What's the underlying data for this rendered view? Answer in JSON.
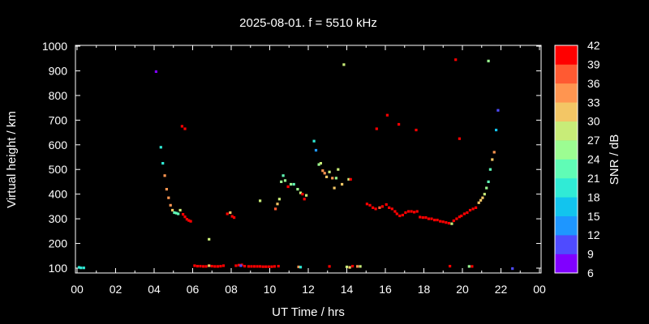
{
  "chart_data": {
    "type": "scatter",
    "title": "2025-08-01. f = 5510 kHz",
    "xlabel": "UT Time / hrs",
    "ylabel": "Virtual height / km",
    "xlim": [
      0,
      24
    ],
    "ylim": [
      70,
      1000
    ],
    "x_ticks": [
      "00",
      "02",
      "04",
      "06",
      "08",
      "10",
      "12",
      "14",
      "16",
      "18",
      "20",
      "22",
      "00"
    ],
    "y_ticks": [
      "100",
      "200",
      "300",
      "400",
      "500",
      "600",
      "700",
      "800",
      "900",
      "1000"
    ],
    "colorbar": {
      "label": "SNR / dB",
      "ticks": [
        "6",
        "9",
        "12",
        "15",
        "18",
        "21",
        "24",
        "27",
        "30",
        "33",
        "36",
        "39",
        "42"
      ],
      "range": [
        6,
        42
      ],
      "colors": [
        "#8000ff",
        "#4f4bff",
        "#1e96ff",
        "#12c4ee",
        "#30ebd6",
        "#60fcb6",
        "#9cfd92",
        "#c8ec78",
        "#f3c665",
        "#ff9550",
        "#ff5a32",
        "#ff0000"
      ]
    },
    "grid": false,
    "legend": "none",
    "points": [
      [
        0.1,
        103,
        18
      ],
      [
        0.2,
        101,
        18
      ],
      [
        0.35,
        101,
        18
      ],
      [
        4.1,
        897,
        8
      ],
      [
        4.35,
        590,
        20
      ],
      [
        4.45,
        525,
        18
      ],
      [
        4.55,
        475,
        33
      ],
      [
        4.65,
        420,
        33
      ],
      [
        4.75,
        385,
        33
      ],
      [
        4.85,
        355,
        33
      ],
      [
        4.95,
        335,
        30
      ],
      [
        5.05,
        325,
        21
      ],
      [
        5.15,
        323,
        21
      ],
      [
        5.25,
        320,
        21
      ],
      [
        5.35,
        335,
        27
      ],
      [
        5.5,
        318,
        39
      ],
      [
        5.6,
        308,
        39
      ],
      [
        5.7,
        298,
        39
      ],
      [
        5.8,
        293,
        40
      ],
      [
        5.9,
        290,
        40
      ],
      [
        5.45,
        675,
        39
      ],
      [
        5.6,
        665,
        39
      ],
      [
        6.1,
        110,
        40
      ],
      [
        6.25,
        108,
        40
      ],
      [
        6.4,
        108,
        40
      ],
      [
        6.55,
        107,
        40
      ],
      [
        6.7,
        107,
        40
      ],
      [
        6.85,
        110,
        30
      ],
      [
        7.0,
        108,
        40
      ],
      [
        7.15,
        107,
        40
      ],
      [
        7.3,
        107,
        40
      ],
      [
        7.45,
        108,
        40
      ],
      [
        7.6,
        110,
        40
      ],
      [
        6.85,
        217,
        27
      ],
      [
        7.8,
        320,
        40
      ],
      [
        7.95,
        325,
        30
      ],
      [
        8.05,
        310,
        40
      ],
      [
        8.15,
        305,
        40
      ],
      [
        8.25,
        110,
        40
      ],
      [
        8.4,
        112,
        40
      ],
      [
        8.55,
        113,
        40
      ],
      [
        8.7,
        108,
        40
      ],
      [
        8.9,
        107,
        40
      ],
      [
        9.05,
        107,
        40
      ],
      [
        9.2,
        107,
        40
      ],
      [
        9.35,
        107,
        40
      ],
      [
        9.5,
        107,
        40
      ],
      [
        9.65,
        106,
        40
      ],
      [
        9.8,
        106,
        40
      ],
      [
        9.95,
        106,
        40
      ],
      [
        10.1,
        106,
        40
      ],
      [
        10.25,
        107,
        40
      ],
      [
        10.45,
        108,
        40
      ],
      [
        8.5,
        110,
        9
      ],
      [
        9.5,
        373,
        27
      ],
      [
        10.3,
        340,
        36
      ],
      [
        10.4,
        360,
        30
      ],
      [
        10.5,
        380,
        27
      ],
      [
        10.6,
        450,
        24
      ],
      [
        10.7,
        475,
        21
      ],
      [
        10.8,
        455,
        24
      ],
      [
        10.95,
        430,
        39
      ],
      [
        11.1,
        440,
        24
      ],
      [
        11.25,
        440,
        21
      ],
      [
        11.45,
        420,
        24
      ],
      [
        11.6,
        405,
        27
      ],
      [
        11.7,
        400,
        39
      ],
      [
        11.8,
        380,
        39
      ],
      [
        11.9,
        395,
        27
      ],
      [
        11.5,
        105,
        33
      ],
      [
        11.6,
        104,
        18
      ],
      [
        12.3,
        615,
        18
      ],
      [
        12.4,
        578,
        12
      ],
      [
        12.55,
        520,
        24
      ],
      [
        12.65,
        525,
        27
      ],
      [
        12.75,
        495,
        33
      ],
      [
        12.85,
        485,
        33
      ],
      [
        12.95,
        470,
        30
      ],
      [
        13.1,
        490,
        27
      ],
      [
        13.25,
        465,
        33
      ],
      [
        13.35,
        425,
        30
      ],
      [
        13.45,
        465,
        24
      ],
      [
        13.55,
        500,
        27
      ],
      [
        13.75,
        440,
        30
      ],
      [
        14.1,
        460,
        27
      ],
      [
        14.2,
        460,
        39
      ],
      [
        13.85,
        925,
        27
      ],
      [
        13.1,
        107,
        40
      ],
      [
        14.0,
        105,
        27
      ],
      [
        14.15,
        103,
        30
      ],
      [
        14.3,
        108,
        40
      ],
      [
        14.55,
        107,
        33
      ],
      [
        14.7,
        107,
        27
      ],
      [
        15.05,
        360,
        40
      ],
      [
        15.2,
        355,
        40
      ],
      [
        15.35,
        345,
        40
      ],
      [
        15.5,
        340,
        39
      ],
      [
        15.7,
        345,
        36
      ],
      [
        15.85,
        350,
        40
      ],
      [
        16.05,
        358,
        40
      ],
      [
        16.2,
        345,
        40
      ],
      [
        16.35,
        340,
        40
      ],
      [
        16.5,
        330,
        40
      ],
      [
        16.6,
        320,
        40
      ],
      [
        16.75,
        312,
        40
      ],
      [
        16.9,
        315,
        40
      ],
      [
        17.05,
        325,
        40
      ],
      [
        17.2,
        330,
        40
      ],
      [
        17.35,
        330,
        40
      ],
      [
        17.5,
        327,
        40
      ],
      [
        17.65,
        330,
        40
      ],
      [
        17.8,
        307,
        40
      ],
      [
        17.95,
        305,
        40
      ],
      [
        18.1,
        305,
        40
      ],
      [
        18.25,
        300,
        40
      ],
      [
        18.4,
        300,
        40
      ],
      [
        18.55,
        295,
        40
      ],
      [
        18.7,
        295,
        40
      ],
      [
        18.85,
        290,
        40
      ],
      [
        19.0,
        288,
        40
      ],
      [
        19.15,
        285,
        40
      ],
      [
        19.3,
        282,
        40
      ],
      [
        19.45,
        280,
        27
      ],
      [
        19.55,
        292,
        40
      ],
      [
        19.7,
        300,
        40
      ],
      [
        19.85,
        308,
        40
      ],
      [
        19.95,
        312,
        40
      ],
      [
        20.1,
        320,
        40
      ],
      [
        20.25,
        325,
        40
      ],
      [
        20.4,
        335,
        39
      ],
      [
        20.55,
        340,
        39
      ],
      [
        20.7,
        345,
        40
      ],
      [
        20.85,
        365,
        30
      ],
      [
        20.95,
        375,
        30
      ],
      [
        21.05,
        385,
        30
      ],
      [
        21.15,
        400,
        27
      ],
      [
        21.25,
        425,
        24
      ],
      [
        21.35,
        450,
        21
      ],
      [
        21.45,
        500,
        21
      ],
      [
        21.55,
        540,
        30
      ],
      [
        21.65,
        570,
        33
      ],
      [
        21.75,
        660,
        15
      ],
      [
        21.85,
        740,
        9
      ],
      [
        15.55,
        665,
        40
      ],
      [
        16.1,
        720,
        40
      ],
      [
        16.7,
        683,
        40
      ],
      [
        17.6,
        660,
        40
      ],
      [
        19.65,
        945,
        40
      ],
      [
        19.85,
        625,
        40
      ],
      [
        21.35,
        940,
        24
      ],
      [
        19.35,
        108,
        40
      ],
      [
        20.35,
        107,
        24
      ],
      [
        20.5,
        107,
        40
      ],
      [
        22.6,
        98,
        9
      ]
    ]
  }
}
